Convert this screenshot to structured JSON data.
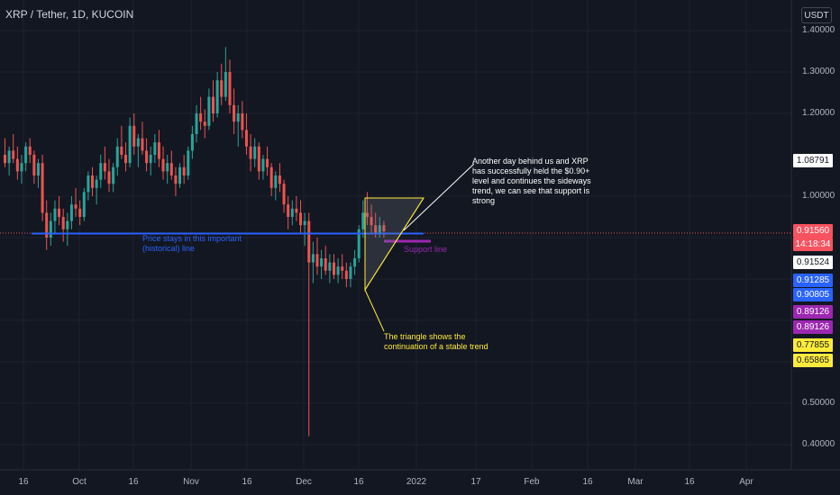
{
  "title": "XRP / Tether, 1D, KUCOIN",
  "currency": "USDT",
  "y_axis": {
    "min": 0.35,
    "max": 1.45,
    "ticks": [
      "1.40000",
      "1.30000",
      "1.20000",
      "1.00000",
      "0.50000",
      "0.40000"
    ],
    "tick_values": [
      1.4,
      1.3,
      1.2,
      1.0,
      0.5,
      0.4
    ]
  },
  "x_axis": {
    "ticks": [
      "16",
      "Oct",
      "16",
      "Nov",
      "16",
      "Dec",
      "16",
      "2022",
      "17",
      "Feb",
      "16",
      "Mar",
      "16",
      "Apr"
    ]
  },
  "price_labels": [
    {
      "text": "1.08791",
      "bg": "#ffffff",
      "fg": "#131722"
    },
    {
      "text": "0.91560",
      "bg": "#f7525f",
      "fg": "#ffffff"
    },
    {
      "text": "14:18:34",
      "bg": "#f7525f",
      "fg": "#ffffff"
    },
    {
      "text": "0.91524",
      "bg": "#ffffff",
      "fg": "#131722"
    },
    {
      "text": "0.91285",
      "bg": "#2962ff",
      "fg": "#ffffff"
    },
    {
      "text": "0.90805",
      "bg": "#2962ff",
      "fg": "#ffffff"
    },
    {
      "text": "0.89126",
      "bg": "#9c27b0",
      "fg": "#ffffff"
    },
    {
      "text": "0.89126",
      "bg": "#9c27b0",
      "fg": "#ffffff"
    },
    {
      "text": "0.77855",
      "bg": "#ffeb3b",
      "fg": "#131722"
    },
    {
      "text": "0.65865",
      "bg": "#ffeb3b",
      "fg": "#131722"
    }
  ],
  "annotations": {
    "blue_note": "Price stays in this important (historical) line",
    "blue_note_line1": "Price stays in this important",
    "blue_note_line2": "(historical) line",
    "support_note": "Support line",
    "triangle_note_line1": "The triangle shows the",
    "triangle_note_line2": "continuation of a stable trend",
    "callout_lines": [
      "Another day behind us and XRP",
      "has successfully held the $0.90+",
      "level and continues the sideways",
      "trend, we can see that support is",
      "strong"
    ]
  },
  "colors": {
    "up": "#26a69a",
    "down": "#ef5350",
    "bg": "#131722",
    "blue_line": "#2962ff",
    "support": "#9c27b0",
    "triangle": "#ffeb3b",
    "callout": "#ffffff"
  },
  "chart_data": {
    "type": "candlestick",
    "symbol": "XRP / Tether",
    "interval": "1D",
    "exchange": "KUCOIN",
    "ylim": [
      0.35,
      1.45
    ],
    "candles": [
      [
        1.1,
        1.14,
        1.07,
        1.08
      ],
      [
        1.08,
        1.12,
        1.05,
        1.11
      ],
      [
        1.11,
        1.15,
        1.08,
        1.09
      ],
      [
        1.09,
        1.12,
        1.04,
        1.06
      ],
      [
        1.06,
        1.1,
        1.03,
        1.08
      ],
      [
        1.08,
        1.13,
        1.06,
        1.12
      ],
      [
        1.12,
        1.14,
        1.08,
        1.1
      ],
      [
        1.1,
        1.11,
        1.03,
        1.05
      ],
      [
        1.05,
        1.09,
        1.02,
        1.08
      ],
      [
        1.08,
        1.1,
        0.94,
        0.96
      ],
      [
        0.96,
        0.99,
        0.87,
        0.9
      ],
      [
        0.9,
        0.96,
        0.88,
        0.94
      ],
      [
        0.94,
        0.99,
        0.91,
        0.97
      ],
      [
        0.97,
        1.0,
        0.93,
        0.95
      ],
      [
        0.95,
        0.97,
        0.89,
        0.92
      ],
      [
        0.92,
        0.96,
        0.88,
        0.94
      ],
      [
        0.94,
        1.0,
        0.92,
        0.98
      ],
      [
        0.98,
        1.02,
        0.95,
        0.97
      ],
      [
        0.97,
        0.99,
        0.93,
        0.95
      ],
      [
        0.95,
        1.02,
        0.94,
        1.01
      ],
      [
        1.01,
        1.06,
        0.99,
        1.05
      ],
      [
        1.05,
        1.07,
        1.0,
        1.02
      ],
      [
        1.02,
        1.05,
        0.98,
        1.04
      ],
      [
        1.04,
        1.1,
        1.02,
        1.08
      ],
      [
        1.08,
        1.12,
        1.04,
        1.06
      ],
      [
        1.06,
        1.09,
        1.01,
        1.03
      ],
      [
        1.03,
        1.08,
        1.01,
        1.07
      ],
      [
        1.07,
        1.14,
        1.05,
        1.12
      ],
      [
        1.12,
        1.17,
        1.09,
        1.1
      ],
      [
        1.1,
        1.13,
        1.06,
        1.08
      ],
      [
        1.08,
        1.19,
        1.07,
        1.17
      ],
      [
        1.17,
        1.2,
        1.1,
        1.12
      ],
      [
        1.12,
        1.15,
        1.07,
        1.14
      ],
      [
        1.14,
        1.18,
        1.1,
        1.11
      ],
      [
        1.11,
        1.14,
        1.06,
        1.08
      ],
      [
        1.08,
        1.12,
        1.05,
        1.1
      ],
      [
        1.1,
        1.15,
        1.08,
        1.13
      ],
      [
        1.13,
        1.16,
        1.07,
        1.09
      ],
      [
        1.09,
        1.12,
        1.04,
        1.06
      ],
      [
        1.06,
        1.1,
        1.03,
        1.08
      ],
      [
        1.08,
        1.11,
        1.04,
        1.05
      ],
      [
        1.05,
        1.07,
        1.0,
        1.03
      ],
      [
        1.03,
        1.08,
        1.02,
        1.07
      ],
      [
        1.07,
        1.1,
        1.03,
        1.05
      ],
      [
        1.05,
        1.12,
        1.04,
        1.11
      ],
      [
        1.11,
        1.17,
        1.09,
        1.15
      ],
      [
        1.15,
        1.22,
        1.13,
        1.2
      ],
      [
        1.2,
        1.24,
        1.16,
        1.18
      ],
      [
        1.18,
        1.21,
        1.14,
        1.17
      ],
      [
        1.17,
        1.26,
        1.16,
        1.24
      ],
      [
        1.24,
        1.28,
        1.18,
        1.2
      ],
      [
        1.2,
        1.3,
        1.19,
        1.28
      ],
      [
        1.28,
        1.32,
        1.22,
        1.24
      ],
      [
        1.24,
        1.36,
        1.23,
        1.3
      ],
      [
        1.3,
        1.33,
        1.2,
        1.22
      ],
      [
        1.22,
        1.26,
        1.15,
        1.18
      ],
      [
        1.18,
        1.22,
        1.12,
        1.2
      ],
      [
        1.2,
        1.23,
        1.14,
        1.16
      ],
      [
        1.16,
        1.2,
        1.1,
        1.12
      ],
      [
        1.12,
        1.15,
        1.06,
        1.09
      ],
      [
        1.09,
        1.14,
        1.07,
        1.12
      ],
      [
        1.12,
        1.13,
        1.04,
        1.06
      ],
      [
        1.06,
        1.1,
        1.04,
        1.09
      ],
      [
        1.09,
        1.12,
        1.05,
        1.07
      ],
      [
        1.07,
        1.08,
        1.0,
        1.02
      ],
      [
        1.02,
        1.06,
        0.99,
        1.05
      ],
      [
        1.05,
        1.08,
        1.01,
        1.03
      ],
      [
        1.03,
        1.04,
        0.96,
        0.98
      ],
      [
        0.98,
        1.0,
        0.92,
        0.95
      ],
      [
        0.95,
        0.99,
        0.93,
        0.97
      ],
      [
        0.97,
        1.0,
        0.94,
        0.96
      ],
      [
        0.96,
        0.99,
        0.91,
        0.93
      ],
      [
        0.93,
        0.96,
        0.88,
        0.94
      ],
      [
        0.94,
        0.96,
        0.42,
        0.84
      ],
      [
        0.84,
        0.89,
        0.79,
        0.86
      ],
      [
        0.86,
        0.9,
        0.81,
        0.83
      ],
      [
        0.83,
        0.87,
        0.8,
        0.85
      ],
      [
        0.85,
        0.88,
        0.81,
        0.82
      ],
      [
        0.82,
        0.86,
        0.79,
        0.84
      ],
      [
        0.84,
        0.86,
        0.8,
        0.81
      ],
      [
        0.81,
        0.85,
        0.79,
        0.83
      ],
      [
        0.83,
        0.86,
        0.8,
        0.82
      ],
      [
        0.82,
        0.84,
        0.78,
        0.8
      ],
      [
        0.8,
        0.84,
        0.78,
        0.83
      ],
      [
        0.83,
        0.87,
        0.81,
        0.85
      ],
      [
        0.85,
        0.93,
        0.84,
        0.92
      ],
      [
        0.92,
        0.99,
        0.9,
        0.96
      ],
      [
        0.96,
        1.01,
        0.93,
        0.95
      ],
      [
        0.95,
        0.98,
        0.91,
        0.93
      ],
      [
        0.93,
        0.96,
        0.9,
        0.91
      ],
      [
        0.91,
        0.95,
        0.9,
        0.93
      ],
      [
        0.93,
        0.94,
        0.9,
        0.915
      ]
    ]
  }
}
